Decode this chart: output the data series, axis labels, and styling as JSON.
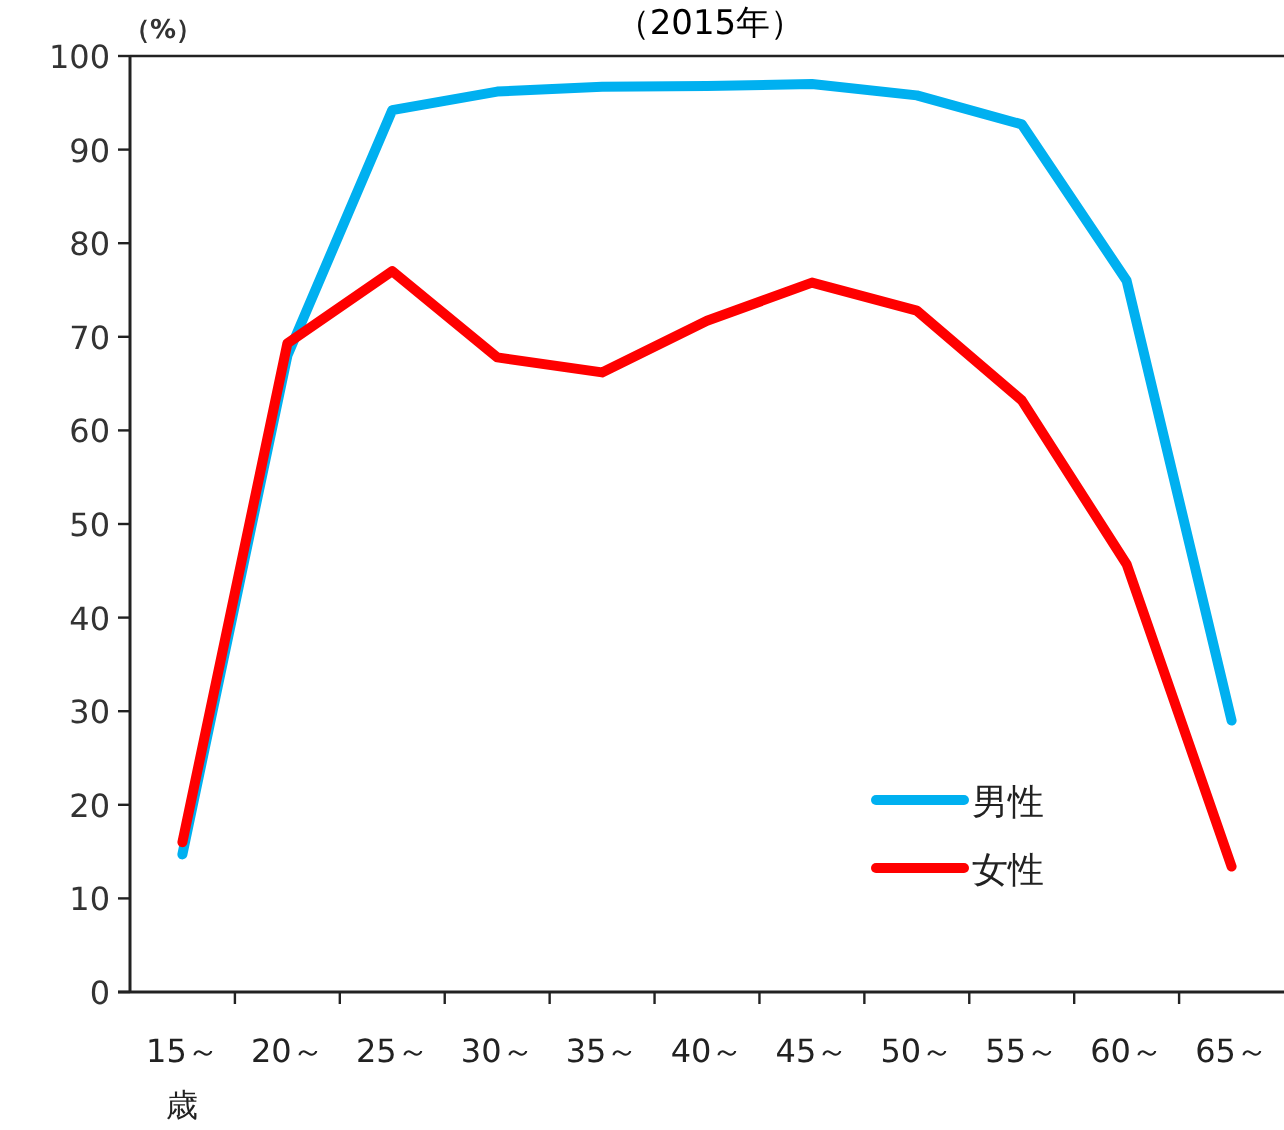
{
  "chart_data": {
    "type": "line",
    "title": "（2015年）",
    "ylabel": "（%）",
    "xlabel": "歳",
    "categories": [
      "15～",
      "20～",
      "25～",
      "30～",
      "35～",
      "40～",
      "45～",
      "50～",
      "55～",
      "60～",
      "65～"
    ],
    "series": [
      {
        "name": "男性",
        "color": "#00b0f0",
        "values": [
          14.7,
          68,
          94.2,
          96.2,
          96.7,
          96.8,
          97.0,
          95.8,
          92.7,
          76,
          29
        ]
      },
      {
        "name": "女性",
        "color": "#ff0000",
        "values": [
          16,
          69.3,
          77,
          67.8,
          66.2,
          71.7,
          75.8,
          72.8,
          63.2,
          45.7,
          13.4
        ]
      }
    ],
    "ylim": [
      0,
      100
    ],
    "yticks": [
      0,
      10,
      20,
      30,
      40,
      50,
      60,
      70,
      80,
      90,
      100
    ],
    "legend": "bottom right",
    "marker": "none",
    "line_style": "solid",
    "grid": false
  }
}
